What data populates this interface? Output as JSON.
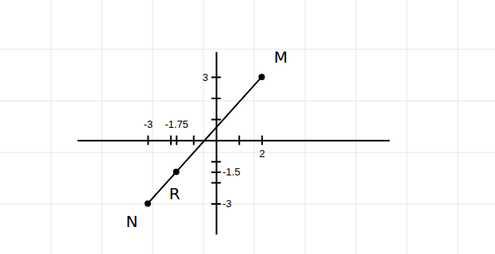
{
  "chart_data": {
    "type": "line",
    "x": [
      -3,
      -1.75,
      2
    ],
    "values": [
      -3,
      -1.5,
      3
    ],
    "point_labels": [
      "N",
      "R",
      "M"
    ],
    "marker": "circle",
    "color": "#000000",
    "xlim": [
      -6.1,
      7.6
    ],
    "ylim": [
      -4.45,
      4.2
    ],
    "xticks": [
      -3,
      {
        "value": -2,
        "label": null
      },
      -1.75,
      {
        "value": -1,
        "label": null
      },
      {
        "value": 1,
        "label": null
      },
      2
    ],
    "yticks": [
      3,
      {
        "value": 2,
        "label": null
      },
      {
        "value": 1,
        "label": null
      },
      {
        "value": -1,
        "label": null
      },
      -1.5,
      {
        "value": -2,
        "label": null
      },
      -3
    ]
  }
}
